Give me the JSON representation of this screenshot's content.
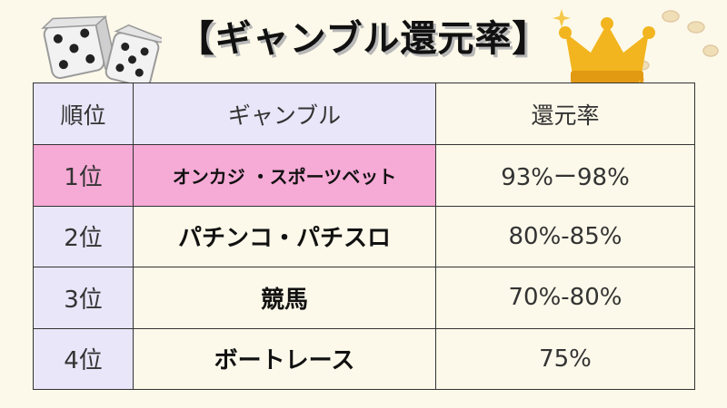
{
  "title": "【ギャンブル還元率】",
  "table": {
    "headers": [
      "順位",
      "ギャンブル",
      "還元率"
    ],
    "rows": [
      {
        "rank": "1位",
        "name": "オンカジ ・スポーツベット",
        "rate": "93%ー98%"
      },
      {
        "rank": "2位",
        "name": "パチンコ・パチスロ",
        "rate": "80%-85%"
      },
      {
        "rank": "3位",
        "name": "競馬",
        "rate": "70%-80%"
      },
      {
        "rank": "4位",
        "name": "ボートレース",
        "rate": "75%"
      }
    ]
  },
  "colors": {
    "background": "#fdf9ea",
    "header_fill": "#e8e6f8",
    "highlight_fill": "#f6aad6",
    "crown": "#f2b51f"
  },
  "icons": [
    "dice-icon",
    "crown-icon",
    "sparkle-icon",
    "coin-icon"
  ]
}
